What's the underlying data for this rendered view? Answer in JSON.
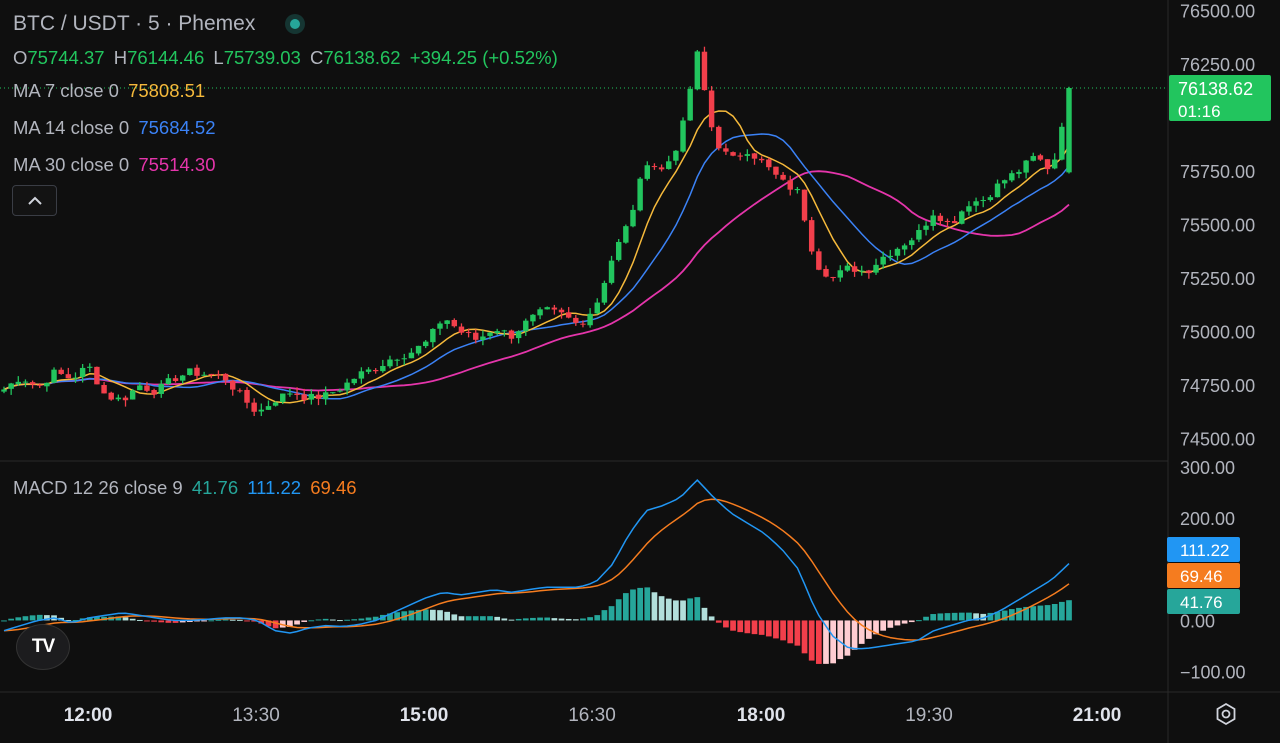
{
  "header": {
    "symbol": "BTC / USDT · 5 · Phemex",
    "ohlc": {
      "o_label": "O",
      "o": "75744.37",
      "h_label": "H",
      "h": "76144.46",
      "l_label": "L",
      "l": "75739.03",
      "c_label": "C",
      "c": "76138.62",
      "change": "+394.25 (+0.52%)"
    }
  },
  "indicators": {
    "ma7": {
      "label": "MA 7 close 0",
      "value": "75808.51",
      "color": "#f5b93b"
    },
    "ma14": {
      "label": "MA 14 close 0",
      "value": "75684.52",
      "color": "#3b82f6"
    },
    "ma30": {
      "label": "MA 30 close 0",
      "value": "75514.30",
      "color": "#e535ab"
    },
    "macd": {
      "label": "MACD 12 26 close 9",
      "hist": "41.76",
      "macd": "111.22",
      "signal": "69.46",
      "hist_color": "#26a69a",
      "macd_color": "#2196f3",
      "signal_color": "#f57c1f"
    }
  },
  "price_badge": {
    "price": "76138.62",
    "countdown": "01:16",
    "color": "#22c55e"
  },
  "macd_badges": {
    "macd": "111.22",
    "signal": "69.46",
    "hist": "41.76"
  },
  "icons": {
    "collapse": "chevron-up-icon",
    "logo": "tradingview-logo-icon",
    "settings": "settings-icon"
  },
  "chart_data": {
    "type": "candlestick",
    "timeframe": "5",
    "price_axis": {
      "ticks": [
        "76500.00",
        "76250.00",
        "75750.00",
        "75500.00",
        "75250.00",
        "75000.00",
        "74750.00",
        "74500.00"
      ],
      "range": [
        74400,
        76550
      ]
    },
    "macd_axis": {
      "ticks": [
        "300.00",
        "200.00",
        "0.00",
        "−100.00"
      ],
      "range": [
        -140,
        310
      ]
    },
    "time_axis": [
      {
        "label": "12:00",
        "bold": true
      },
      {
        "label": "13:30",
        "bold": false
      },
      {
        "label": "15:00",
        "bold": true
      },
      {
        "label": "16:30",
        "bold": false
      },
      {
        "label": "18:00",
        "bold": true
      },
      {
        "label": "19:30",
        "bold": false
      },
      {
        "label": "21:00",
        "bold": true
      }
    ],
    "ohlc_path": [
      74730,
      74790,
      74740,
      74810,
      74780,
      74840,
      74700,
      74680,
      74750,
      74720,
      74780,
      74810,
      74800,
      74790,
      74700,
      74620,
      74680,
      74720,
      74690,
      74700,
      74740,
      74800,
      74830,
      74880,
      74900,
      74950,
      75070,
      75000,
      74960,
      75020,
      74980,
      75050,
      75100,
      75080,
      75030,
      75120,
      75350,
      75520,
      75800,
      75750,
      75900,
      76300,
      75900,
      75800,
      75850,
      75780,
      75700,
      75650,
      75320,
      75250,
      75300,
      75280,
      75350,
      75400,
      75450,
      75560,
      75500,
      75600,
      75620,
      75700,
      75750,
      75820,
      75750,
      76138.62
    ],
    "ma7_last": 75808.51,
    "ma14_last": 75684.52,
    "ma30_last": 75514.3,
    "macd_path": [
      -20,
      -10,
      0,
      5,
      -5,
      5,
      10,
      15,
      10,
      5,
      0,
      0,
      2,
      5,
      5,
      0,
      -20,
      -25,
      -15,
      -10,
      -12,
      -8,
      0,
      15,
      30,
      45,
      55,
      50,
      55,
      60,
      55,
      60,
      65,
      65,
      65,
      75,
      110,
      170,
      215,
      225,
      240,
      275,
      240,
      210,
      190,
      170,
      140,
      100,
      20,
      -30,
      -55,
      -55,
      -50,
      -45,
      -40,
      -20,
      -10,
      0,
      5,
      20,
      40,
      60,
      80,
      111.22
    ],
    "signal_last": 69.46,
    "hist_last": 41.76
  }
}
